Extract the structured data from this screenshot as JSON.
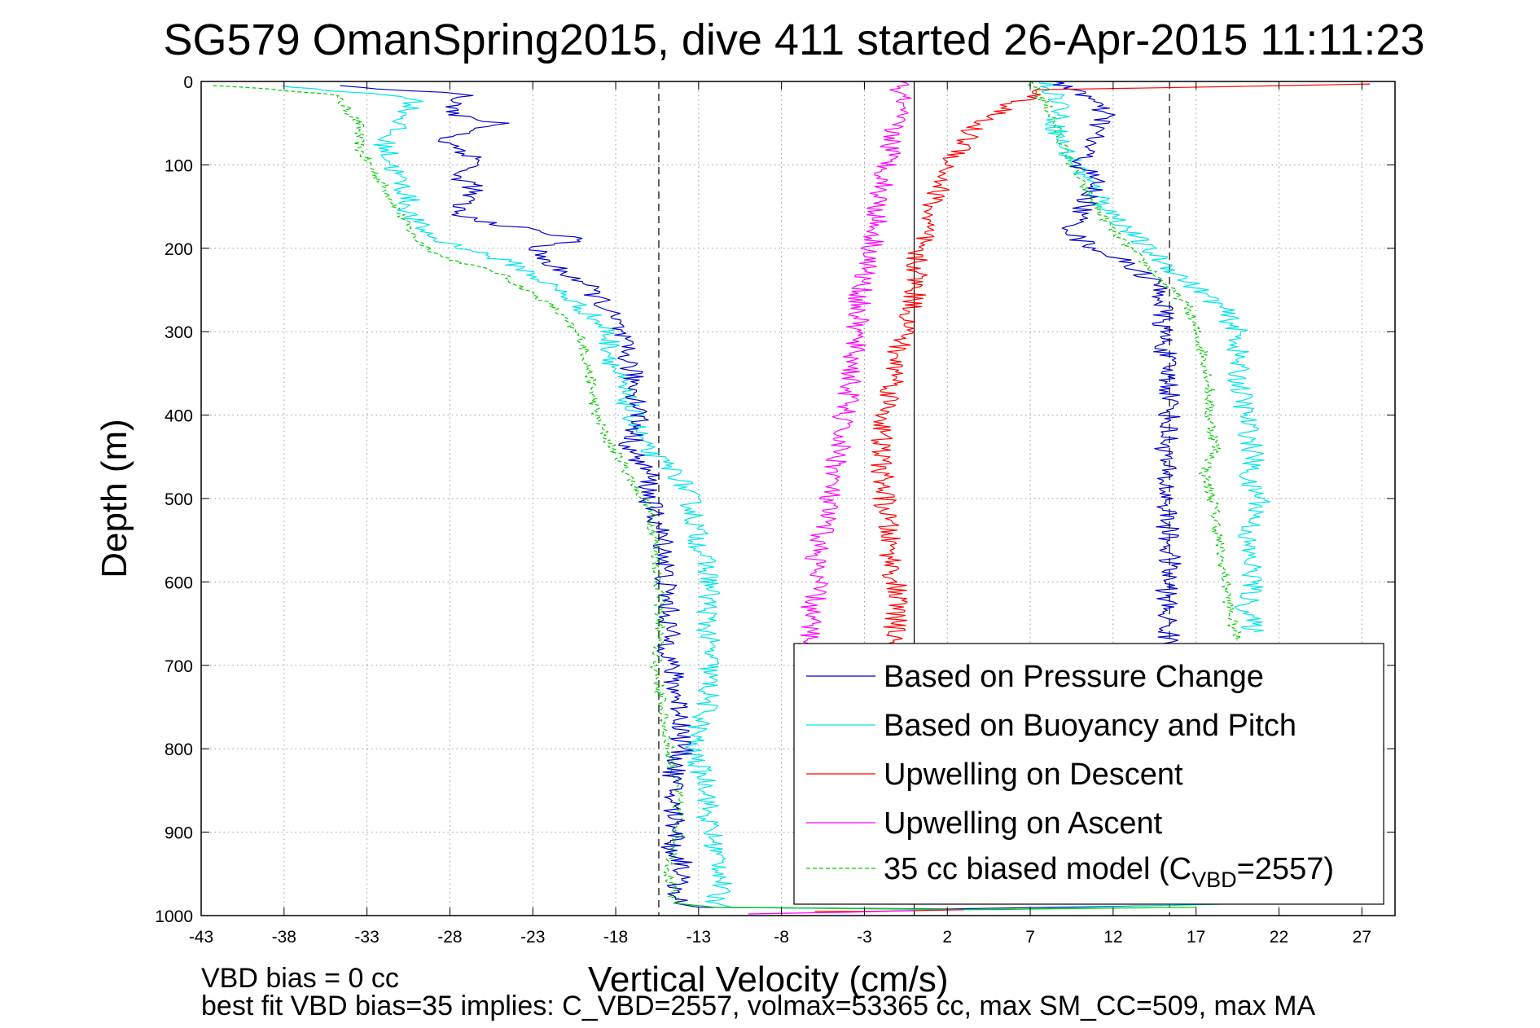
{
  "chart_data": {
    "type": "line",
    "title": "SG579 OmanSpring2015, dive 411 started 26-Apr-2015 11:11:23",
    "xlabel": "Vertical Velocity (cm/s)",
    "ylabel": "Depth (m)",
    "xlim": [
      -43,
      29
    ],
    "ylim": [
      0,
      1000
    ],
    "y_reversed": true,
    "grid": true,
    "legend_position": "bottom-right",
    "xticks": [
      "-43",
      "-38",
      "-33",
      "-28",
      "-23",
      "-18",
      "-13",
      "-8",
      "-3",
      "2",
      "7",
      "12",
      "17",
      "22",
      "27"
    ],
    "yticks": [
      "0",
      "100",
      "200",
      "300",
      "400",
      "500",
      "600",
      "700",
      "800",
      "900",
      "1000"
    ],
    "reference_lines": [
      {
        "x": -15.4,
        "style": "dashed",
        "color": "#000000"
      },
      {
        "x": 0,
        "style": "solid",
        "color": "#000000"
      },
      {
        "x": 15.4,
        "style": "dashed",
        "color": "#000000"
      }
    ],
    "series": [
      {
        "name": "Based on Pressure Change",
        "color": "#0000cc",
        "dash": "solid",
        "descent": {
          "x": [
            -35,
            -27,
            -28,
            -25,
            -28.5,
            -27,
            -26,
            -28,
            -26.5,
            -27,
            -27.8,
            -24,
            -20,
            -23,
            -22,
            -20,
            -19,
            -18,
            -17.5,
            -17,
            -16.8,
            -16.5,
            -17.2,
            -16,
            -16,
            -15.5,
            -15,
            -15,
            -14.8,
            -14.8,
            -14.5,
            -14,
            -14,
            -14.5,
            -14.6,
            -14.2,
            -14.7,
            -13.8,
            -14.3,
            -14.2,
            -14.5
          ],
          "y": [
            5,
            15,
            40,
            50,
            70,
            85,
            100,
            110,
            125,
            140,
            160,
            175,
            190,
            200,
            220,
            240,
            260,
            290,
            320,
            350,
            370,
            400,
            440,
            470,
            500,
            530,
            560,
            600,
            640,
            680,
            720,
            760,
            800,
            830,
            870,
            900,
            920,
            940,
            960,
            980,
            985
          ]
        },
        "ascent": {
          "x": [
            8,
            10,
            10.5,
            11.5,
            11,
            10.5,
            10,
            11,
            10.5,
            10,
            9.5,
            10,
            11,
            13,
            14.5,
            15,
            15,
            15.2,
            15.5,
            15.3,
            15.1,
            15.2,
            15.3,
            15.4,
            15.2,
            15.3,
            15.4
          ],
          "y": [
            0,
            10,
            20,
            40,
            60,
            80,
            100,
            120,
            140,
            160,
            180,
            190,
            200,
            220,
            240,
            260,
            300,
            340,
            380,
            420,
            460,
            500,
            540,
            580,
            620,
            660,
            680
          ]
        }
      },
      {
        "name": "Based on Buoyancy and Pitch",
        "color": "#00e5e5",
        "dash": "solid",
        "descent": {
          "x": [
            -38,
            -30,
            -31,
            -32,
            -31.5,
            -31,
            -30.5,
            -30.5,
            -29.5,
            -28.8,
            -27,
            -24,
            -21.5,
            -19.5,
            -18.5,
            -18,
            -17,
            -16.3,
            -14.3,
            -13.5,
            -13,
            -12.3,
            -12.5,
            -12.3,
            -12.5,
            -13.5,
            -12.3,
            -12.5,
            -12,
            -11.5,
            -12
          ],
          "y": [
            5,
            20,
            50,
            70,
            100,
            120,
            140,
            160,
            180,
            190,
            200,
            220,
            250,
            280,
            300,
            350,
            400,
            440,
            470,
            500,
            550,
            600,
            650,
            700,
            750,
            800,
            850,
            880,
            920,
            950,
            985
          ]
        },
        "ascent": {
          "x": [
            8,
            9,
            8.5,
            9,
            10.5,
            12,
            14,
            16.5,
            18.5,
            19.5,
            19.5,
            20,
            20.5,
            20,
            21,
            20,
            20.5,
            20,
            20.5
          ],
          "y": [
            0,
            30,
            50,
            80,
            120,
            160,
            200,
            240,
            270,
            300,
            350,
            400,
            450,
            480,
            500,
            550,
            600,
            630,
            660
          ]
        }
      },
      {
        "name": "Upwelling on Descent",
        "color": "#ff0000",
        "dash": "solid",
        "descent": {
          "x": [
            28,
            8,
            5.5,
            3.5,
            3,
            2,
            1.5,
            0.8,
            0.5,
            0,
            0.2,
            0,
            -0.5,
            -1.2,
            -1,
            -1.5,
            -2,
            -2,
            -1.8,
            -1.5,
            -1.2,
            -1,
            -1.1,
            -1.2,
            -1
          ],
          "y": [
            3,
            10,
            30,
            55,
            80,
            100,
            130,
            160,
            190,
            200,
            230,
            260,
            300,
            330,
            350,
            380,
            420,
            450,
            500,
            550,
            600,
            620,
            640,
            660,
            680
          ]
        }
      },
      {
        "name": "Upwelling on Ascent",
        "color": "#ff00ff",
        "dash": "solid",
        "ascent": {
          "x": [
            -1,
            -0.8,
            -1.2,
            -1.4,
            -1.7,
            -2.1,
            -2.3,
            -2.5,
            -3,
            -3.3,
            -3.5,
            -3.7,
            -4,
            -4.4,
            -4.5,
            -4.8,
            -5.2,
            -5.4,
            -5.8,
            -6,
            -5.8,
            -6.2,
            -6.3,
            -6
          ],
          "y": [
            0,
            20,
            50,
            80,
            110,
            140,
            170,
            200,
            230,
            260,
            300,
            340,
            380,
            410,
            440,
            470,
            500,
            530,
            560,
            590,
            610,
            630,
            660,
            680
          ]
        }
      },
      {
        "name": "35 cc biased model",
        "legend_label": "35 cc biased model (C",
        "legend_subscript": "VBD",
        "legend_suffix": "=2557)",
        "color": "#00cc00",
        "dash": "dashed",
        "descent": {
          "x": [
            -42,
            -35,
            -33.5,
            -33.5,
            -32.5,
            -31.5,
            -31,
            -30,
            -28.5,
            -25,
            -21.8,
            -20,
            -19.5,
            -19.2,
            -18.5,
            -17.5,
            -17,
            -16,
            -15.6,
            -15.4,
            -15.3,
            -15.6,
            -15.2,
            -14.8,
            -14.3,
            -14.2,
            -14.8,
            -14.5
          ],
          "y": [
            5,
            15,
            50,
            80,
            110,
            140,
            160,
            190,
            210,
            230,
            270,
            310,
            360,
            400,
            430,
            460,
            480,
            510,
            550,
            600,
            650,
            700,
            750,
            800,
            850,
            900,
            950,
            985
          ]
        },
        "ascent": {
          "x": [
            7,
            8,
            8.5,
            9,
            10,
            11,
            12,
            13.5,
            15,
            16.5,
            17,
            17.5,
            17.8,
            17.8,
            18.2,
            17.5,
            18,
            18.3,
            18.5,
            18.8,
            19,
            19.2,
            19.5
          ],
          "y": [
            0,
            30,
            50,
            80,
            120,
            150,
            180,
            210,
            240,
            270,
            300,
            330,
            360,
            400,
            440,
            470,
            500,
            540,
            570,
            600,
            630,
            650,
            670
          ]
        }
      }
    ],
    "bottom_spikes": [
      {
        "color": "#0000cc",
        "x": [
          -14.5,
          -13,
          2,
          15
        ],
        "y": [
          985,
          990,
          992,
          988
        ]
      },
      {
        "color": "#00e5e5",
        "x": [
          -12,
          -11,
          5,
          19
        ],
        "y": [
          985,
          990,
          993,
          986
        ]
      },
      {
        "color": "#00cc00",
        "x": [
          -14.5,
          -12,
          3,
          17
        ],
        "y": [
          985,
          990,
          993,
          990
        ]
      },
      {
        "color": "#ff0000",
        "x": [
          -6,
          -3,
          3
        ],
        "y": [
          995,
          995,
          993
        ]
      },
      {
        "color": "#ff00ff",
        "x": [
          -10,
          -4,
          0
        ],
        "y": [
          998,
          996,
          994
        ]
      }
    ]
  },
  "footer": {
    "line1": "VBD bias = 0 cc",
    "line2": "best fit VBD bias=35 implies: C_VBD=2557, volmax=53365 cc, max SM_CC=509, max MA"
  }
}
